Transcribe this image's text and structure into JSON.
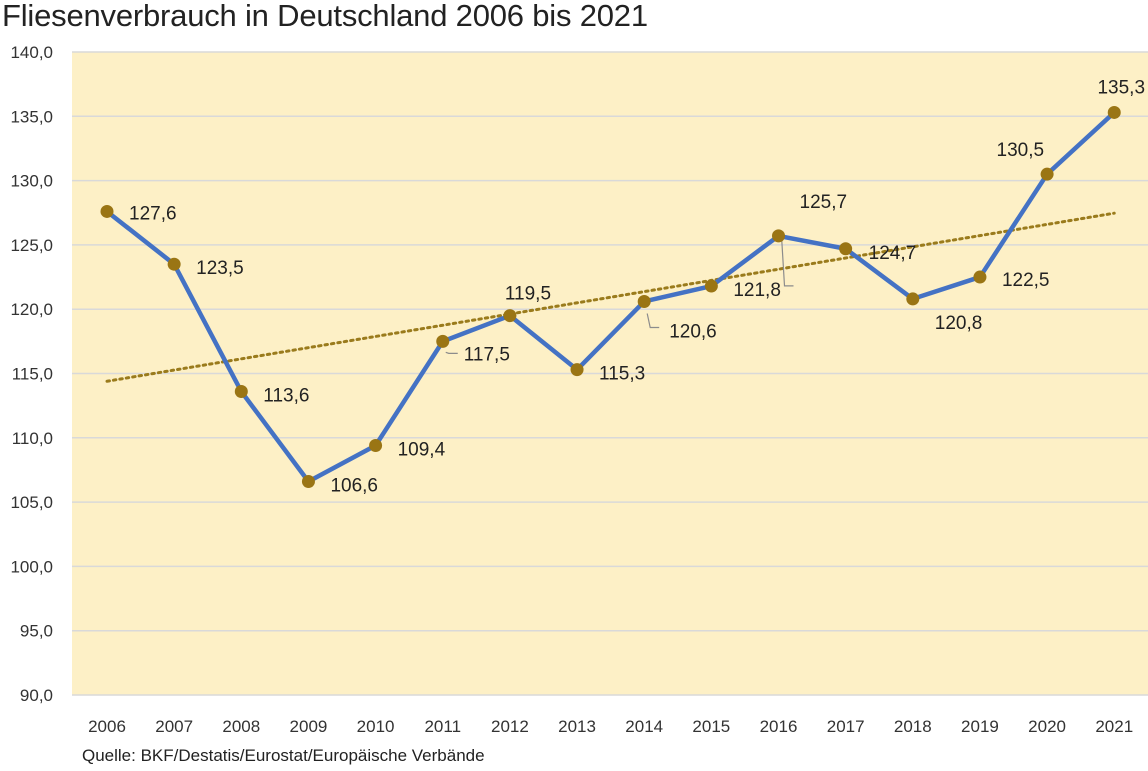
{
  "title": "Fliesenverbrauch in Deutschland 2006 bis 2021",
  "source": "Quelle: BKF/Destatis/Eurostat/Europäische Verbände",
  "colors": {
    "plot_background": "#fdf0c6",
    "line": "#4472c4",
    "marker": "#9a7514",
    "trendline": "#9a7b1c",
    "gridline": "#d9d9d9"
  },
  "chart_data": {
    "type": "line",
    "title": "Fliesenverbrauch in Deutschland 2006 bis 2021",
    "xlabel": "",
    "ylabel": "",
    "categories": [
      "2006",
      "2007",
      "2008",
      "2009",
      "2010",
      "2011",
      "2012",
      "2013",
      "2014",
      "2015",
      "2016",
      "2017",
      "2018",
      "2019",
      "2020",
      "2021"
    ],
    "series": [
      {
        "values": [
          127.6,
          123.5,
          113.6,
          106.6,
          109.4,
          117.5,
          119.5,
          115.3,
          120.6,
          121.8,
          125.7,
          124.7,
          120.8,
          122.5,
          130.5,
          135.3
        ],
        "data_labels": [
          "127,6",
          "123,5",
          "113,6",
          "106,6",
          "109,4",
          "117,5",
          "119,5",
          "115,3",
          "120,6",
          "121,8",
          "125,7",
          "124,7",
          "120,8",
          "122,5",
          "130,5",
          "135,3"
        ]
      }
    ],
    "trendline": {
      "type": "linear",
      "style": "dotted"
    },
    "ylim": [
      90,
      140
    ],
    "yticks": [
      90,
      95,
      100,
      105,
      110,
      115,
      120,
      125,
      130,
      135,
      140
    ],
    "ytick_labels": [
      "90,0",
      "95,0",
      "100,0",
      "105,0",
      "110,0",
      "115,0",
      "120,0",
      "125,0",
      "130,0",
      "135,0",
      "140,0"
    ],
    "grid": "horizontal",
    "legend": "none"
  }
}
